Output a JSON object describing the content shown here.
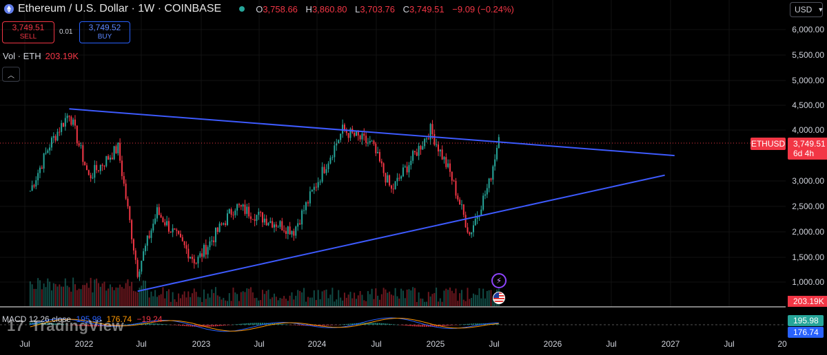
{
  "header": {
    "title": "Ethereum / U.S. Dollar · 1W · COINBASE",
    "ohlc": [
      {
        "k": "O",
        "v": "3,758.66"
      },
      {
        "k": "H",
        "v": "3,860.80"
      },
      {
        "k": "L",
        "v": "3,703.76"
      },
      {
        "k": "C",
        "v": "3,749.51"
      }
    ],
    "change": "−9.09 (−0.24%)"
  },
  "trade": {
    "sell_price": "3,749.51",
    "sell_label": "SELL",
    "spread": "0.01",
    "buy_price": "3,749.52",
    "buy_label": "BUY"
  },
  "volume_legend": {
    "label": "Vol · ETH",
    "value": "203.19K"
  },
  "currency": "USD",
  "symbol_tag": "ETHUSD",
  "last_price": "3,749.51",
  "countdown": "6d 4h",
  "volume_tag": "203.19K",
  "macd": {
    "label": "MACD 12 26 close",
    "macd_value": "195.98",
    "signal_value": "176.74",
    "hist_value": "−19.24",
    "tag_macd": "195.98",
    "tag_signal": "176.74"
  },
  "branding": "TradingView",
  "colors": {
    "up": "#26a69a",
    "down": "#f23645",
    "trendline": "#3d5afe",
    "macd_line": "#2962ff",
    "signal_line": "#ff9800"
  },
  "chart_data": {
    "type": "candlestick",
    "x_axis_labels": [
      "Jul",
      "2022",
      "Jul",
      "2023",
      "Jul",
      "2024",
      "Jul",
      "2025",
      "Jul",
      "2026",
      "Jul",
      "2027",
      "Jul",
      "20"
    ],
    "y_axis_labels": [
      "6,000.00",
      "5,500.00",
      "5,000.00",
      "4,500.00",
      "4,000.00",
      "3,000.00",
      "2,500.00",
      "2,000.00",
      "1,500.00",
      "1,000.00"
    ],
    "y_scale": "log",
    "last_close": 3749.51,
    "approx_weekly_closes": [
      {
        "date": "2021-07",
        "price": 2300
      },
      {
        "date": "2021-09",
        "price": 3500
      },
      {
        "date": "2021-11",
        "price": 4700
      },
      {
        "date": "2022-01",
        "price": 2600
      },
      {
        "date": "2022-04",
        "price": 3400
      },
      {
        "date": "2022-06",
        "price": 1100
      },
      {
        "date": "2022-08",
        "price": 1900
      },
      {
        "date": "2022-12",
        "price": 1200
      },
      {
        "date": "2023-04",
        "price": 2000
      },
      {
        "date": "2023-06",
        "price": 1850
      },
      {
        "date": "2023-10",
        "price": 1600
      },
      {
        "date": "2024-03",
        "price": 4000
      },
      {
        "date": "2024-06",
        "price": 3500
      },
      {
        "date": "2024-08",
        "price": 2300
      },
      {
        "date": "2024-12",
        "price": 4000
      },
      {
        "date": "2025-02",
        "price": 2700
      },
      {
        "date": "2025-04",
        "price": 1550
      },
      {
        "date": "2025-06",
        "price": 2450
      },
      {
        "date": "2025-07",
        "price": 3749.51
      }
    ],
    "trendlines": [
      {
        "name": "upper",
        "from": {
          "date": "2021-11",
          "price": 4850
        },
        "to": {
          "date": "2027-01",
          "price": 3170
        }
      },
      {
        "name": "lower",
        "from": {
          "date": "2022-06",
          "price": 920
        },
        "to": {
          "date": "2026-12",
          "price": 2650
        }
      }
    ]
  }
}
